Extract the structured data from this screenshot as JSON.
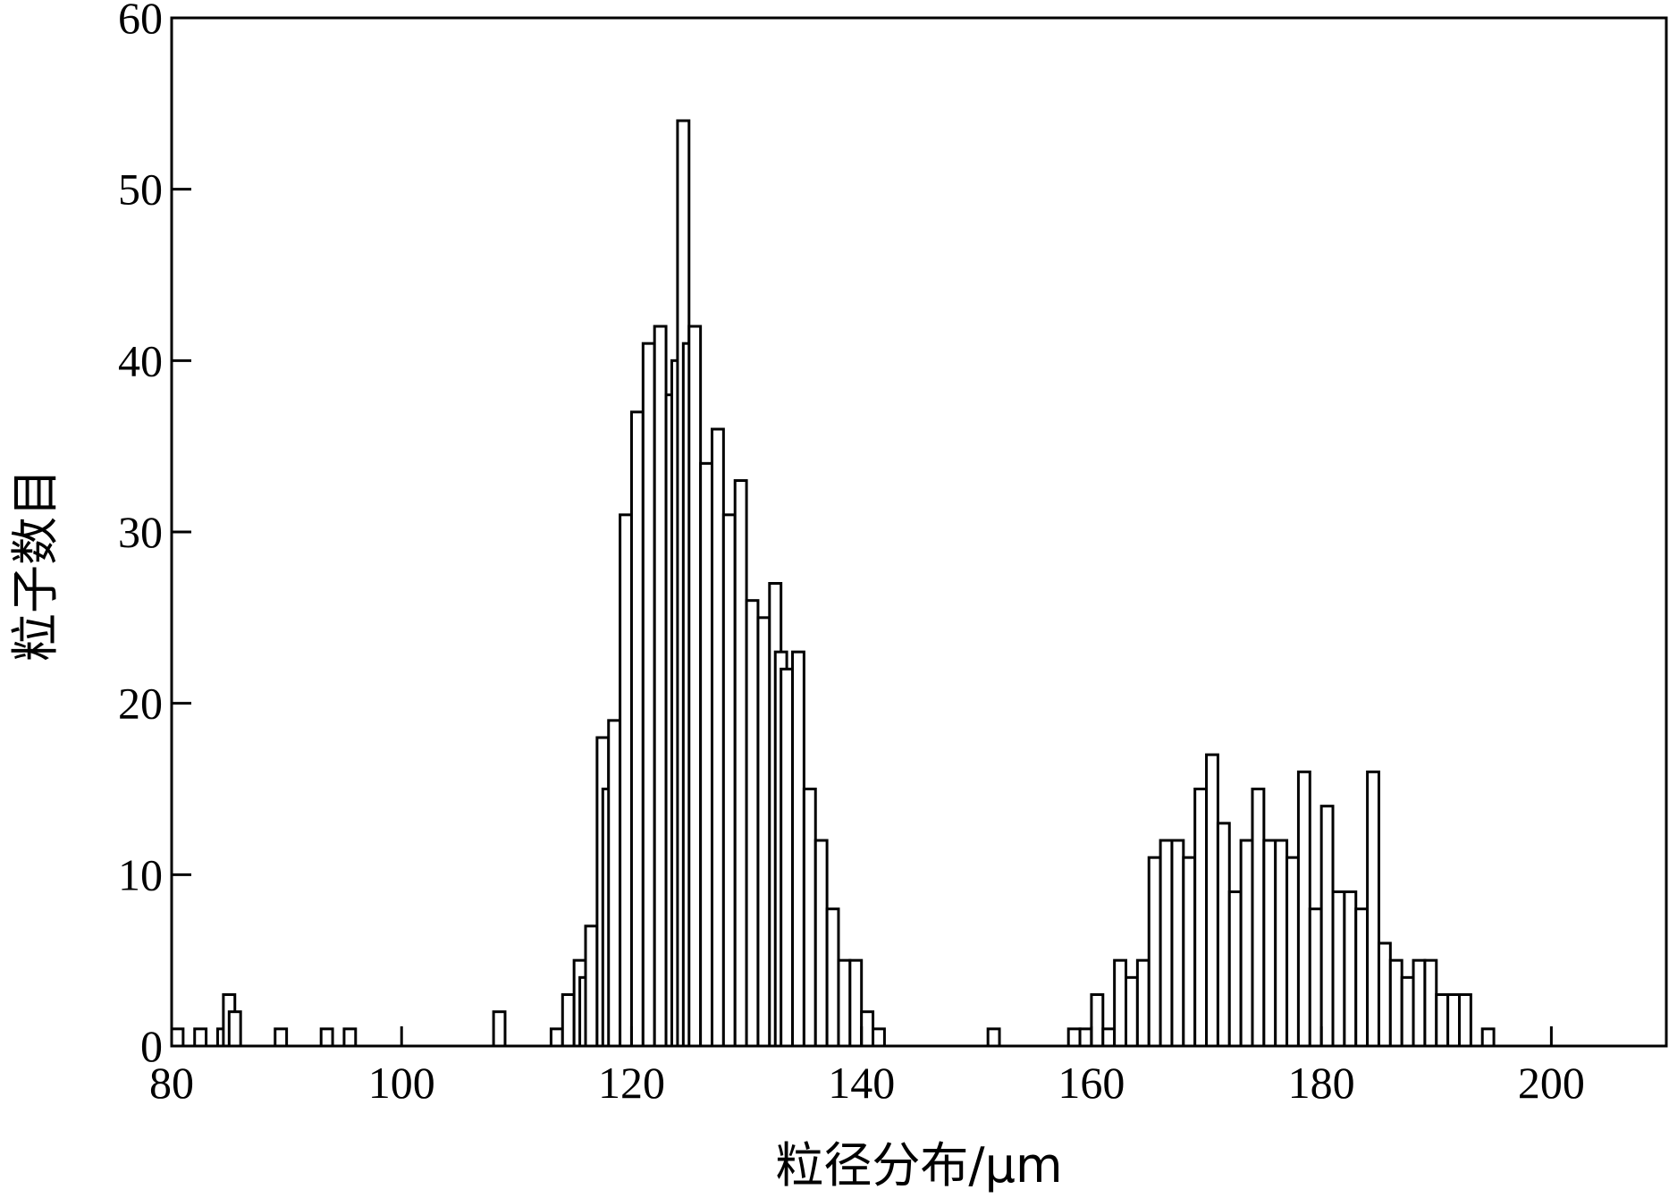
{
  "chart_data": {
    "type": "bar",
    "xlabel": "粒径分布/μm",
    "ylabel": "粒子数目",
    "xlim": [
      80,
      210
    ],
    "ylim": [
      0,
      60
    ],
    "bin_width": 1,
    "x_ticks": [
      80,
      100,
      120,
      140,
      160,
      180,
      200
    ],
    "y_ticks": [
      0,
      10,
      20,
      30,
      40,
      50,
      60
    ],
    "grid": false,
    "x": [
      80,
      82,
      84,
      84.5,
      85,
      89,
      93,
      95,
      108,
      113,
      114,
      115,
      115.5,
      116,
      117,
      117.5,
      118,
      119,
      120,
      121,
      122,
      123,
      123.5,
      124,
      124.5,
      125,
      126,
      127,
      128,
      129,
      130,
      131,
      132,
      132.5,
      133,
      134,
      135,
      136,
      137,
      138,
      139,
      140,
      141,
      151,
      158,
      159,
      160,
      161,
      162,
      163,
      164,
      165,
      166,
      167,
      168,
      169,
      170,
      171,
      172,
      173,
      174,
      175,
      176,
      177,
      178,
      179,
      180,
      181,
      182,
      183,
      184,
      185,
      186,
      187,
      188,
      189,
      190,
      191,
      192,
      194
    ],
    "values": [
      1,
      1,
      1,
      3,
      2,
      1,
      1,
      1,
      2,
      1,
      3,
      5,
      4,
      7,
      18,
      15,
      19,
      31,
      37,
      41,
      42,
      38,
      40,
      54,
      41,
      42,
      34,
      36,
      31,
      33,
      26,
      25,
      27,
      23,
      22,
      23,
      15,
      12,
      8,
      5,
      5,
      2,
      1,
      1,
      1,
      1,
      3,
      1,
      5,
      4,
      5,
      11,
      12,
      12,
      11,
      15,
      17,
      13,
      9,
      12,
      15,
      12,
      12,
      11,
      16,
      8,
      14,
      9,
      9,
      8,
      16,
      6,
      5,
      4,
      5,
      5,
      3,
      3,
      3,
      1
    ]
  }
}
